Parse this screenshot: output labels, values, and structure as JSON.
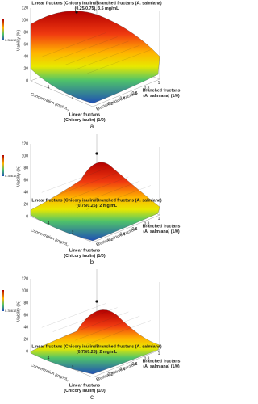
{
  "panels": [
    {
      "label": "a",
      "annotation": [
        "Linear fructans (Chicory inulin)/Branched fructans (A. salmiana)",
        "(0.25/0.75), 3.5 mg/mL"
      ],
      "y_axis_title": "Viability (%)",
      "y_ticks": [
        0,
        20,
        40,
        60,
        80,
        100,
        120
      ],
      "concentration_title": "Concentration (mg/mL)",
      "concentration_ticks": [
        4,
        2
      ],
      "fraction_title": "Fructan mixture fractions",
      "fraction_ticks": [
        0,
        0.2,
        0.4,
        0.6,
        0.8,
        1
      ],
      "left_corner": [
        "Linear fructans",
        "(Chicory inulin) (1/0)"
      ],
      "right_corner": [
        "Branched fructans",
        "(A. salmiana) (1/0)"
      ],
      "colorbar_min": "0.35617"
    },
    {
      "label": "b",
      "annotation": [
        "Linear fructans (Chicory inulin)/Branched fructans (A. salmiana)",
        "(0.75/0.25), 2 mg/mL"
      ],
      "y_axis_title": "Viability (%)",
      "y_ticks": [
        0,
        20,
        40,
        60,
        80,
        100,
        120
      ],
      "concentration_title": "Concentration (mg/mL)",
      "concentration_ticks": [
        4,
        2
      ],
      "fraction_title": "Fructan mixture fractions",
      "fraction_ticks": [
        0,
        0.2,
        0.4,
        0.6,
        0.8,
        1
      ],
      "left_corner": [
        "Linear fructans",
        "(Chicory inulin) (1/0)"
      ],
      "right_corner": [
        "Branched fructans",
        "(A. salmiana) (1/0)"
      ],
      "colorbar_min": "0.35617"
    },
    {
      "label": "c",
      "annotation": [
        "Linear fructans (Chicory inulin)/Branched fructans (A. salmiana)",
        "(0.75/0.25), 2 mg/mL"
      ],
      "y_axis_title": "Viability (%)",
      "y_ticks": [
        0,
        20,
        40,
        60,
        80,
        100,
        120
      ],
      "concentration_title": "Concentration (mg/mL)",
      "concentration_ticks": [
        4,
        2
      ],
      "fraction_title": "Fructan mixture fractions",
      "fraction_ticks": [
        0,
        0.2,
        0.4,
        0.6,
        0.8,
        1
      ],
      "left_corner": [
        "Linear fructans",
        "(Chicory inulin) (1/0)"
      ],
      "right_corner": [
        "Branched fructans",
        "(A. salmiana) (1/0)"
      ],
      "colorbar_min": "0.35617"
    }
  ]
}
